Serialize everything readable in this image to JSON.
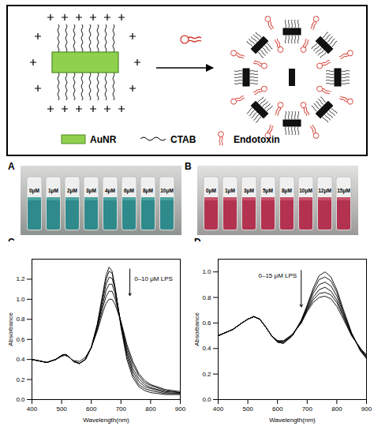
{
  "diagram": {
    "legend": {
      "rod": "AuNR",
      "surfactant": "CTAB",
      "target": "Endotoxin"
    }
  },
  "photos": [
    {
      "panel": "A",
      "vial_labels": [
        "0μM",
        "1μM",
        "2μM",
        "3μM",
        "4μM",
        "6μM",
        "8μM",
        "10μM"
      ]
    },
    {
      "panel": "B",
      "vial_labels": [
        "0μM",
        "1μM",
        "3μM",
        "5μM",
        "8μM",
        "10μM",
        "12μM",
        "15μM"
      ]
    }
  ],
  "chart_data": [
    {
      "panel": "C",
      "type": "line",
      "x_label": "Wavelength(nm)",
      "y_label": "Absorbance",
      "annotation": "0–10 μM LPS",
      "x": [
        400,
        450,
        480,
        500,
        510,
        520,
        540,
        560,
        580,
        600,
        620,
        640,
        650,
        660,
        670,
        680,
        700,
        720,
        740,
        760,
        780,
        800,
        850,
        900
      ],
      "series": [
        {
          "color": "#000000",
          "values": [
            0.4,
            0.37,
            0.4,
            0.44,
            0.45,
            0.44,
            0.38,
            0.36,
            0.4,
            0.52,
            0.75,
            1.08,
            1.24,
            1.32,
            1.28,
            1.12,
            0.72,
            0.4,
            0.22,
            0.13,
            0.09,
            0.07,
            0.05,
            0.05
          ]
        },
        {
          "color": "#000000",
          "values": [
            0.4,
            0.37,
            0.4,
            0.44,
            0.45,
            0.44,
            0.38,
            0.36,
            0.4,
            0.52,
            0.74,
            1.05,
            1.2,
            1.28,
            1.26,
            1.12,
            0.74,
            0.43,
            0.25,
            0.15,
            0.11,
            0.09,
            0.06,
            0.06
          ]
        },
        {
          "color": "#000000",
          "values": [
            0.4,
            0.37,
            0.4,
            0.44,
            0.45,
            0.44,
            0.38,
            0.36,
            0.4,
            0.52,
            0.73,
            1.01,
            1.15,
            1.22,
            1.21,
            1.1,
            0.75,
            0.46,
            0.28,
            0.18,
            0.13,
            0.11,
            0.07,
            0.06
          ]
        },
        {
          "color": "#000000",
          "values": [
            0.4,
            0.37,
            0.4,
            0.44,
            0.45,
            0.44,
            0.38,
            0.36,
            0.4,
            0.52,
            0.72,
            0.97,
            1.09,
            1.15,
            1.15,
            1.06,
            0.76,
            0.49,
            0.31,
            0.21,
            0.15,
            0.12,
            0.08,
            0.07
          ]
        },
        {
          "color": "#000000",
          "values": [
            0.4,
            0.37,
            0.4,
            0.44,
            0.45,
            0.44,
            0.38,
            0.36,
            0.4,
            0.52,
            0.7,
            0.93,
            1.03,
            1.08,
            1.08,
            1.01,
            0.77,
            0.52,
            0.35,
            0.24,
            0.17,
            0.14,
            0.09,
            0.07
          ]
        },
        {
          "color": "#000000",
          "values": [
            0.4,
            0.37,
            0.4,
            0.43,
            0.44,
            0.43,
            0.39,
            0.38,
            0.42,
            0.52,
            0.68,
            0.88,
            0.96,
            1.0,
            1.0,
            0.95,
            0.78,
            0.55,
            0.38,
            0.26,
            0.19,
            0.15,
            0.1,
            0.08
          ]
        }
      ],
      "xlim": [
        400,
        900
      ],
      "xticks": [
        400,
        500,
        600,
        700,
        800,
        900
      ],
      "ylim": [
        0,
        1.4
      ],
      "yticks": [
        {
          "value": 0,
          "label": "0.0"
        },
        {
          "value": 0.2,
          "label": "0.2"
        },
        {
          "value": 0.4,
          "label": "0.4"
        },
        {
          "value": 0.6,
          "label": "0.6"
        },
        {
          "value": 0.8,
          "label": "0.8"
        },
        {
          "value": 1.0,
          "label": "1.0"
        },
        {
          "value": 1.2,
          "label": "1.2"
        }
      ]
    },
    {
      "panel": "D",
      "type": "line",
      "x_label": "Wavelength(nm)",
      "y_label": "Absorbance",
      "annotation": "0–15 μM LPS",
      "x": [
        400,
        420,
        450,
        480,
        500,
        520,
        540,
        560,
        580,
        600,
        620,
        650,
        680,
        700,
        720,
        740,
        760,
        780,
        800,
        820,
        850,
        880,
        900
      ],
      "series": [
        {
          "color": "#000000",
          "values": [
            0.5,
            0.52,
            0.55,
            0.6,
            0.63,
            0.65,
            0.63,
            0.57,
            0.5,
            0.45,
            0.44,
            0.5,
            0.62,
            0.74,
            0.87,
            0.97,
            1.0,
            0.96,
            0.86,
            0.72,
            0.52,
            0.38,
            0.32
          ]
        },
        {
          "color": "#000000",
          "values": [
            0.5,
            0.52,
            0.55,
            0.6,
            0.63,
            0.65,
            0.63,
            0.57,
            0.5,
            0.45,
            0.44,
            0.5,
            0.62,
            0.73,
            0.85,
            0.94,
            0.96,
            0.93,
            0.84,
            0.7,
            0.52,
            0.38,
            0.33
          ]
        },
        {
          "color": "#000000",
          "values": [
            0.5,
            0.52,
            0.55,
            0.6,
            0.63,
            0.65,
            0.63,
            0.57,
            0.5,
            0.45,
            0.45,
            0.5,
            0.61,
            0.72,
            0.83,
            0.9,
            0.92,
            0.89,
            0.81,
            0.69,
            0.51,
            0.39,
            0.33
          ]
        },
        {
          "color": "#000000",
          "values": [
            0.5,
            0.52,
            0.55,
            0.6,
            0.63,
            0.65,
            0.63,
            0.57,
            0.5,
            0.46,
            0.45,
            0.51,
            0.61,
            0.71,
            0.8,
            0.86,
            0.88,
            0.85,
            0.78,
            0.67,
            0.51,
            0.39,
            0.34
          ]
        },
        {
          "color": "#000000",
          "values": [
            0.5,
            0.52,
            0.55,
            0.6,
            0.63,
            0.65,
            0.63,
            0.57,
            0.5,
            0.46,
            0.46,
            0.51,
            0.6,
            0.7,
            0.78,
            0.83,
            0.84,
            0.82,
            0.76,
            0.66,
            0.5,
            0.4,
            0.34
          ]
        },
        {
          "color": "#000000",
          "values": [
            0.5,
            0.52,
            0.55,
            0.6,
            0.63,
            0.65,
            0.63,
            0.57,
            0.5,
            0.46,
            0.46,
            0.51,
            0.6,
            0.69,
            0.76,
            0.8,
            0.81,
            0.79,
            0.73,
            0.64,
            0.5,
            0.4,
            0.35
          ]
        }
      ],
      "xlim": [
        400,
        900
      ],
      "xticks": [
        400,
        500,
        600,
        700,
        800,
        900
      ],
      "ylim": [
        0,
        1.1
      ],
      "yticks": [
        {
          "value": 0,
          "label": "0.0"
        },
        {
          "value": 0.2,
          "label": "0.2"
        },
        {
          "value": 0.4,
          "label": "0.4"
        },
        {
          "value": 0.6,
          "label": "0.6"
        },
        {
          "value": 0.8,
          "label": "0.8"
        },
        {
          "value": 1.0,
          "label": "1.0"
        }
      ]
    }
  ]
}
